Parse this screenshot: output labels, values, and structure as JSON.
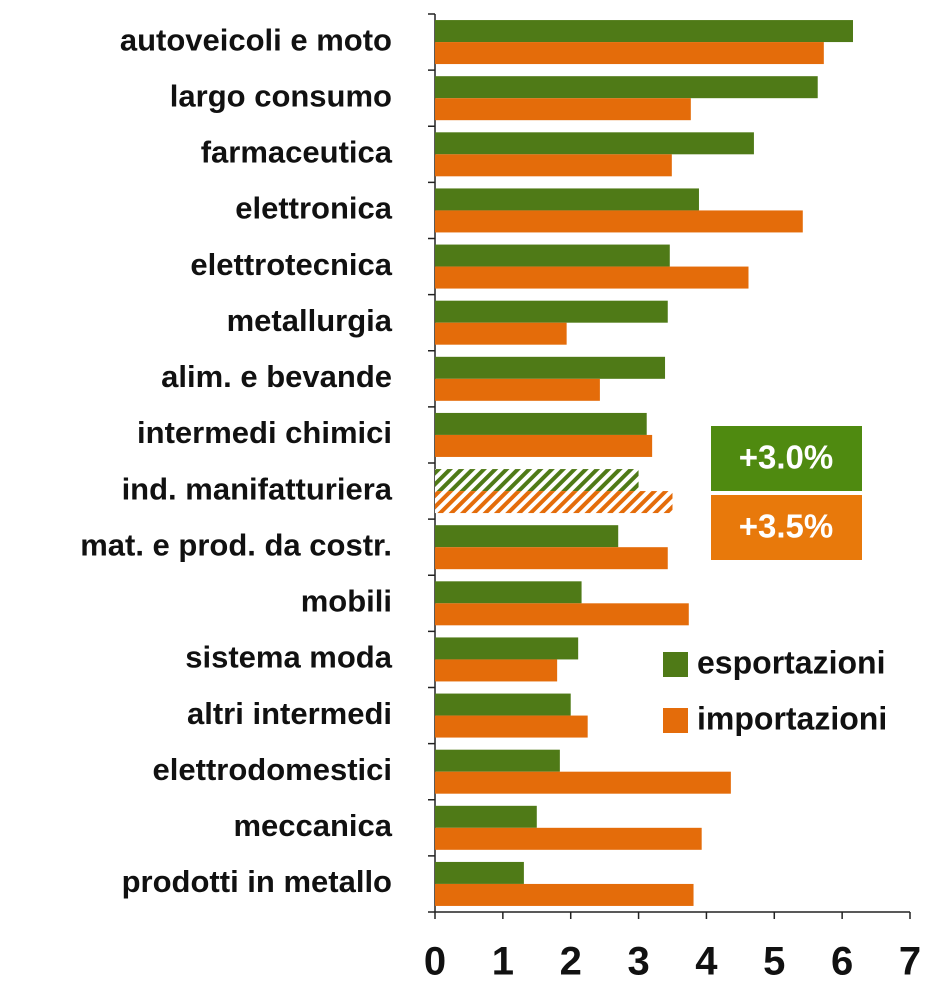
{
  "chart_data": {
    "type": "hbar",
    "categories": [
      "autoveicoli e moto",
      "largo consumo",
      "farmaceutica",
      "elettronica",
      "elettrotecnica",
      "metallurgia",
      "alim. e bevande",
      "intermedi chimici",
      "ind. manifatturiera",
      "mat. e prod. da costr.",
      "mobili",
      "sistema moda",
      "altri intermedi",
      "elettrodomestici",
      "meccanica",
      "prodotti in metallo"
    ],
    "series": [
      {
        "name": "esportazioni",
        "color": "#4f7a17",
        "values": [
          6.16,
          5.64,
          4.7,
          3.89,
          3.46,
          3.43,
          3.39,
          3.12,
          3.0,
          2.7,
          2.16,
          2.11,
          2.0,
          1.84,
          1.5,
          1.31
        ],
        "value_labels": [
          null,
          null,
          null,
          null,
          null,
          null,
          null,
          null,
          "+3.0%",
          null,
          null,
          null,
          null,
          null,
          null,
          null
        ]
      },
      {
        "name": "importazioni",
        "color": "#e46c0a",
        "values": [
          5.73,
          3.77,
          3.49,
          5.42,
          4.62,
          1.94,
          2.43,
          3.2,
          3.5,
          3.43,
          3.74,
          1.8,
          2.25,
          4.36,
          3.93,
          3.81
        ],
        "value_labels": [
          null,
          null,
          null,
          null,
          null,
          null,
          null,
          null,
          "+3.5%",
          null,
          null,
          null,
          null,
          null,
          null,
          null
        ]
      }
    ],
    "hatched_index": 8,
    "xlim": [
      0,
      7
    ],
    "xticks": [
      0,
      1,
      2,
      3,
      4,
      5,
      6,
      7
    ]
  }
}
